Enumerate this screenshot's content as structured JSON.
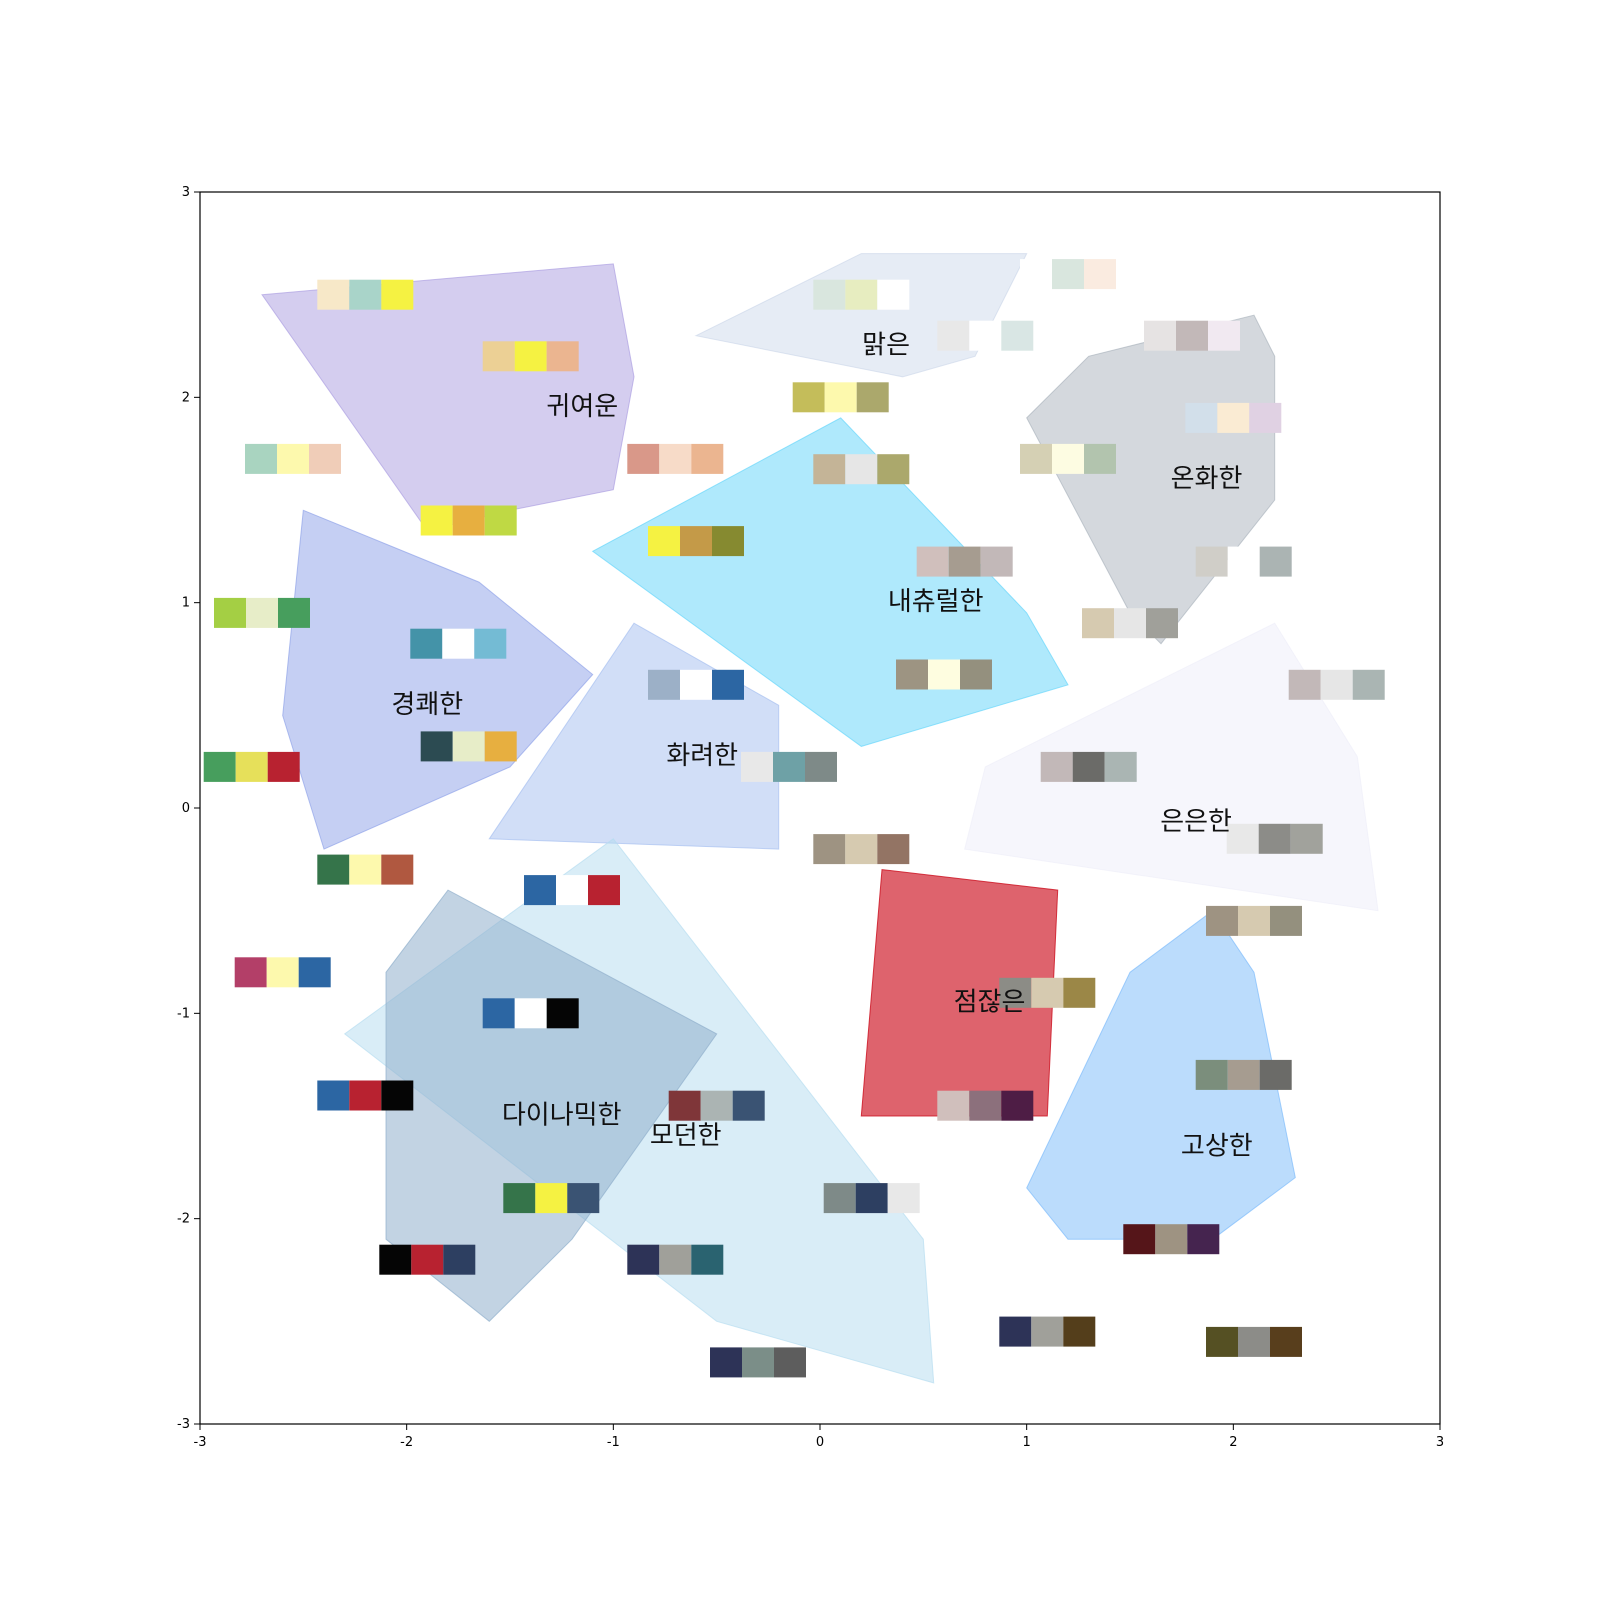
{
  "chart_data": {
    "type": "scatter",
    "title": "",
    "xlabel": "",
    "ylabel": "",
    "xlim": [
      -3,
      3
    ],
    "ylim": [
      -3,
      3
    ],
    "grid": false,
    "x_ticks": [
      "-3",
      "-2",
      "-1",
      "0",
      "1",
      "2",
      "3"
    ],
    "y_ticks": [
      "-3",
      "-2",
      "-1",
      "0",
      "1",
      "2",
      "3"
    ],
    "regions": [
      {
        "label": "귀여운",
        "label_at": [
          -1.15,
          1.95
        ],
        "color": "#a99be0",
        "opacity": 0.5,
        "hull": [
          [
            -2.7,
            2.5
          ],
          [
            -1.0,
            2.65
          ],
          [
            -0.9,
            2.1
          ],
          [
            -1.0,
            1.55
          ],
          [
            -1.5,
            1.45
          ],
          [
            -1.9,
            1.35
          ]
        ]
      },
      {
        "label": "맑은",
        "label_at": [
          0.32,
          2.25
        ],
        "color": "#c8d4e8",
        "opacity": 0.45,
        "hull": [
          [
            -0.6,
            2.3
          ],
          [
            0.2,
            2.7
          ],
          [
            1.0,
            2.7
          ],
          [
            0.75,
            2.2
          ],
          [
            0.4,
            2.1
          ]
        ]
      },
      {
        "label": "온화한",
        "label_at": [
          1.87,
          1.6
        ],
        "color": "#a9b2bb",
        "opacity": 0.5,
        "hull": [
          [
            1.0,
            1.9
          ],
          [
            1.3,
            2.2
          ],
          [
            2.1,
            2.4
          ],
          [
            2.2,
            2.2
          ],
          [
            2.2,
            1.5
          ],
          [
            1.65,
            0.8
          ],
          [
            1.5,
            0.95
          ]
        ]
      },
      {
        "label": "내츄럴한",
        "label_at": [
          0.56,
          1.0
        ],
        "color": "#5fd4fa",
        "opacity": 0.5,
        "hull": [
          [
            -1.1,
            1.25
          ],
          [
            0.1,
            1.9
          ],
          [
            1.0,
            0.95
          ],
          [
            1.2,
            0.6
          ],
          [
            0.7,
            0.45
          ],
          [
            0.2,
            0.3
          ]
        ]
      },
      {
        "label": "경쾌한",
        "label_at": [
          -1.9,
          0.5
        ],
        "color": "#8c9fe8",
        "opacity": 0.5,
        "hull": [
          [
            -2.5,
            1.45
          ],
          [
            -1.65,
            1.1
          ],
          [
            -1.1,
            0.65
          ],
          [
            -1.5,
            0.2
          ],
          [
            -2.4,
            -0.2
          ],
          [
            -2.6,
            0.45
          ]
        ]
      },
      {
        "label": "화려한",
        "label_at": [
          -0.57,
          0.25
        ],
        "color": "#a3bdf0",
        "opacity": 0.5,
        "hull": [
          [
            -0.9,
            0.9
          ],
          [
            -0.2,
            0.5
          ],
          [
            -0.2,
            -0.2
          ],
          [
            -1.6,
            -0.15
          ]
        ]
      },
      {
        "label": "은은한",
        "label_at": [
          1.82,
          -0.07
        ],
        "color": "#eeeef9",
        "opacity": 0.5,
        "hull": [
          [
            0.8,
            0.2
          ],
          [
            2.2,
            0.9
          ],
          [
            2.6,
            0.25
          ],
          [
            2.7,
            -0.5
          ],
          [
            0.7,
            -0.2
          ]
        ]
      },
      {
        "label": "점잖은",
        "label_at": [
          0.82,
          -0.95
        ],
        "color": "#cc0f1e",
        "opacity": 0.65,
        "hull": [
          [
            0.3,
            -0.3
          ],
          [
            1.15,
            -0.4
          ],
          [
            1.1,
            -1.5
          ],
          [
            0.2,
            -1.5
          ]
        ]
      },
      {
        "label": "모던한",
        "label_at": [
          -0.65,
          -1.6
        ],
        "color": "#b3dcf0",
        "opacity": 0.5,
        "hull": [
          [
            -2.3,
            -1.1
          ],
          [
            -1.0,
            -0.15
          ],
          [
            0.5,
            -2.1
          ],
          [
            0.55,
            -2.8
          ],
          [
            -0.5,
            -2.5
          ]
        ]
      },
      {
        "label": "다이나믹한",
        "label_at": [
          -1.25,
          -1.5
        ],
        "color": "#90afcc",
        "opacity": 0.55,
        "hull": [
          [
            -2.1,
            -0.8
          ],
          [
            -1.8,
            -0.4
          ],
          [
            -0.5,
            -1.1
          ],
          [
            -1.2,
            -2.1
          ],
          [
            -1.6,
            -2.5
          ],
          [
            -2.1,
            -2.1
          ]
        ]
      },
      {
        "label": "고상한",
        "label_at": [
          1.92,
          -1.65
        ],
        "color": "#78b9fa",
        "opacity": 0.5,
        "hull": [
          [
            1.5,
            -0.8
          ],
          [
            1.9,
            -0.5
          ],
          [
            2.1,
            -0.8
          ],
          [
            2.3,
            -1.8
          ],
          [
            1.9,
            -2.1
          ],
          [
            1.2,
            -2.1
          ],
          [
            1.0,
            -1.85
          ]
        ]
      }
    ],
    "palettes": [
      {
        "x": -2.2,
        "y": 2.5,
        "colors": [
          "#f7e8c8",
          "#a9d4c9",
          "#f5f242"
        ]
      },
      {
        "x": -1.4,
        "y": 2.2,
        "colors": [
          "#ecd095",
          "#f5f242",
          "#ebb590"
        ]
      },
      {
        "x": -2.55,
        "y": 1.7,
        "colors": [
          "#a9d4c0",
          "#fdf9ad",
          "#f0cdb8"
        ]
      },
      {
        "x": -1.7,
        "y": 1.4,
        "colors": [
          "#f5f242",
          "#e7af40",
          "#bfd944"
        ]
      },
      {
        "x": -0.7,
        "y": 1.7,
        "colors": [
          "#d99889",
          "#f7dbc8",
          "#ebb590"
        ]
      },
      {
        "x": -0.6,
        "y": 1.3,
        "colors": [
          "#f5f242",
          "#c49a48",
          "#868a30"
        ]
      },
      {
        "x": 0.2,
        "y": 2.5,
        "colors": [
          "#d9e6de",
          "#e7edc0",
          "#ffffff"
        ]
      },
      {
        "x": 1.2,
        "y": 2.6,
        "colors": [
          "#ffffff",
          "#d9e6de",
          "#faebe0"
        ]
      },
      {
        "x": 0.8,
        "y": 2.3,
        "colors": [
          "#e8e8e8",
          "#ffffff",
          "#d9e6e4"
        ]
      },
      {
        "x": 1.8,
        "y": 2.3,
        "colors": [
          "#e6e3e3",
          "#c2b8b8",
          "#f1e9f1"
        ]
      },
      {
        "x": 2.0,
        "y": 1.9,
        "colors": [
          "#d2dfea",
          "#faebd3",
          "#e0d1e3"
        ]
      },
      {
        "x": 0.1,
        "y": 2.0,
        "colors": [
          "#c4bd5a",
          "#fdf9ad",
          "#aba86c"
        ]
      },
      {
        "x": 0.2,
        "y": 1.65,
        "colors": [
          "#c4b497",
          "#e6e6e6",
          "#aba86c"
        ]
      },
      {
        "x": 1.2,
        "y": 1.7,
        "colors": [
          "#d5d0b4",
          "#fdfce2",
          "#b2c4ae"
        ]
      },
      {
        "x": 0.7,
        "y": 1.2,
        "colors": [
          "#d0bfbc",
          "#a69c90",
          "#c2b8b8"
        ]
      },
      {
        "x": 2.05,
        "y": 1.2,
        "colors": [
          "#d0cec8",
          "#ffffff",
          "#abb4b3"
        ]
      },
      {
        "x": 1.5,
        "y": 0.9,
        "colors": [
          "#d6cab0",
          "#e6e6e6",
          "#a0a09a"
        ]
      },
      {
        "x": 0.6,
        "y": 0.65,
        "colors": [
          "#9d9482",
          "#fefde0",
          "#94907e"
        ]
      },
      {
        "x": 2.5,
        "y": 0.6,
        "colors": [
          "#c2b8b8",
          "#e6e6e6",
          "#aab5b3"
        ]
      },
      {
        "x": -2.7,
        "y": 0.95,
        "colors": [
          "#a4cf44",
          "#e7edc8",
          "#479e5d"
        ]
      },
      {
        "x": -1.75,
        "y": 0.8,
        "colors": [
          "#4493a8",
          "#ffffff",
          "#74bbd4"
        ]
      },
      {
        "x": -2.75,
        "y": 0.2,
        "colors": [
          "#479e5d",
          "#e6e05a",
          "#b82230"
        ]
      },
      {
        "x": -1.7,
        "y": 0.3,
        "colors": [
          "#2c4b52",
          "#e7edc8",
          "#e7af40"
        ]
      },
      {
        "x": -0.6,
        "y": 0.6,
        "colors": [
          "#9cb0c7",
          "#ffffff",
          "#2c66a3"
        ]
      },
      {
        "x": -0.15,
        "y": 0.2,
        "colors": [
          "#e8e8e8",
          "#6ea1a6",
          "#7e8a88"
        ]
      },
      {
        "x": 1.3,
        "y": 0.2,
        "colors": [
          "#c2b8b8",
          "#6b6b68",
          "#aab5b3"
        ]
      },
      {
        "x": 2.2,
        "y": -0.15,
        "colors": [
          "#e8e8e8",
          "#8c8c88",
          "#a1a29c"
        ]
      },
      {
        "x": 0.2,
        "y": -0.2,
        "colors": [
          "#9e9382",
          "#d6cab0",
          "#937464"
        ]
      },
      {
        "x": -2.2,
        "y": -0.3,
        "colors": [
          "#35744a",
          "#fdf9ad",
          "#b05840"
        ]
      },
      {
        "x": -1.2,
        "y": -0.4,
        "colors": [
          "#2c66a3",
          "#ffffff",
          "#b82230"
        ]
      },
      {
        "x": 2.1,
        "y": -0.55,
        "colors": [
          "#9e9382",
          "#d6cab0",
          "#94907e"
        ]
      },
      {
        "x": -2.6,
        "y": -0.8,
        "colors": [
          "#b33f68",
          "#fdf9ad",
          "#2c66a3"
        ]
      },
      {
        "x": 1.1,
        "y": -0.9,
        "colors": [
          "#8c8c86",
          "#d6cab0",
          "#9b8747"
        ]
      },
      {
        "x": -1.4,
        "y": -1.0,
        "colors": [
          "#2c66a3",
          "#ffffff",
          "#050505"
        ]
      },
      {
        "x": 2.05,
        "y": -1.3,
        "colors": [
          "#7b8e7c",
          "#a69c90",
          "#6b6b68"
        ]
      },
      {
        "x": -2.2,
        "y": -1.4,
        "colors": [
          "#2c66a3",
          "#b82230",
          "#050505"
        ]
      },
      {
        "x": -0.5,
        "y": -1.45,
        "colors": [
          "#7f3639",
          "#abb4b3",
          "#3a5373"
        ]
      },
      {
        "x": 0.8,
        "y": -1.45,
        "colors": [
          "#d0bfbc",
          "#8c707c",
          "#4e1d45"
        ]
      },
      {
        "x": -1.3,
        "y": -1.9,
        "colors": [
          "#35744a",
          "#f5f242",
          "#3a5373"
        ]
      },
      {
        "x": 0.25,
        "y": -1.9,
        "colors": [
          "#7e8a88",
          "#2d3f61",
          "#e8e8e8"
        ]
      },
      {
        "x": -1.9,
        "y": -2.2,
        "colors": [
          "#050505",
          "#b82230",
          "#2d3f61"
        ]
      },
      {
        "x": -0.7,
        "y": -2.2,
        "colors": [
          "#2d3357",
          "#a0a09a",
          "#2a6370"
        ]
      },
      {
        "x": 1.7,
        "y": -2.1,
        "colors": [
          "#551519",
          "#9e9382",
          "#45244f"
        ]
      },
      {
        "x": 1.1,
        "y": -2.55,
        "colors": [
          "#2d3357",
          "#a0a09a",
          "#543e1b"
        ]
      },
      {
        "x": 2.1,
        "y": -2.6,
        "colors": [
          "#555023",
          "#8c8c88",
          "#583e1c"
        ]
      },
      {
        "x": -0.3,
        "y": -2.7,
        "colors": [
          "#2d3357",
          "#7b8e88",
          "#5d5d5d"
        ]
      }
    ]
  }
}
